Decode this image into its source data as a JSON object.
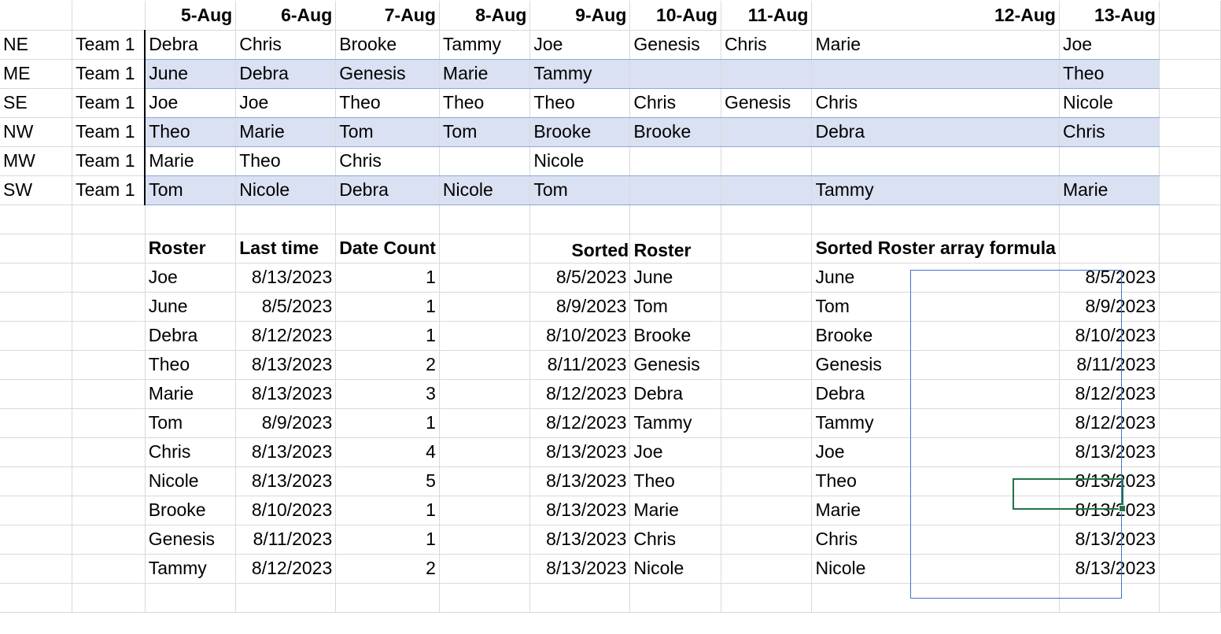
{
  "schedule": {
    "dates": [
      "5-Aug",
      "6-Aug",
      "7-Aug",
      "8-Aug",
      "9-Aug",
      "10-Aug",
      "11-Aug",
      "12-Aug",
      "13-Aug"
    ],
    "rows": [
      {
        "region": "NE",
        "team": "Team 1",
        "names": [
          "Debra",
          "Chris",
          "Brooke",
          "Tammy",
          "Joe",
          "Genesis",
          "Chris",
          "Marie",
          "Joe"
        ]
      },
      {
        "region": "ME",
        "team": "Team 1",
        "names": [
          "June",
          "Debra",
          "Genesis",
          "Marie",
          "Tammy",
          "",
          "",
          "",
          "Theo"
        ]
      },
      {
        "region": "SE",
        "team": "Team 1",
        "names": [
          "Joe",
          "Joe",
          "Theo",
          "Theo",
          "Theo",
          "Chris",
          "Genesis",
          "Chris",
          "Nicole"
        ]
      },
      {
        "region": "NW",
        "team": "Team 1",
        "names": [
          "Theo",
          "Marie",
          "Tom",
          "Tom",
          "Brooke",
          "Brooke",
          "",
          "Debra",
          "Chris"
        ]
      },
      {
        "region": "MW",
        "team": "Team 1",
        "names": [
          "Marie",
          "Theo",
          "Chris",
          "",
          "Nicole",
          "",
          "",
          "",
          ""
        ]
      },
      {
        "region": "SW",
        "team": "Team 1",
        "names": [
          "Tom",
          "Nicole",
          "Debra",
          "Nicole",
          "Tom",
          "",
          "",
          "Tammy",
          "Marie"
        ]
      }
    ],
    "band_color": "#d9e1f2"
  },
  "roster": {
    "headers": {
      "roster": "Roster",
      "last_time": "Last time",
      "date_count": "Date Count"
    },
    "rows": [
      [
        "Joe",
        "8/13/2023",
        "1"
      ],
      [
        "June",
        "8/5/2023",
        "1"
      ],
      [
        "Debra",
        "8/12/2023",
        "1"
      ],
      [
        "Theo",
        "8/13/2023",
        "2"
      ],
      [
        "Marie",
        "8/13/2023",
        "3"
      ],
      [
        "Tom",
        "8/9/2023",
        "1"
      ],
      [
        "Chris",
        "8/13/2023",
        "4"
      ],
      [
        "Nicole",
        "8/13/2023",
        "5"
      ],
      [
        "Brooke",
        "8/10/2023",
        "1"
      ],
      [
        "Genesis",
        "8/11/2023",
        "1"
      ],
      [
        "Tammy",
        "8/12/2023",
        "2"
      ]
    ]
  },
  "sorted_roster": {
    "header": "Sorted Roster",
    "rows": [
      [
        "8/5/2023",
        "June"
      ],
      [
        "8/9/2023",
        "Tom"
      ],
      [
        "8/10/2023",
        "Brooke"
      ],
      [
        "8/11/2023",
        "Genesis"
      ],
      [
        "8/12/2023",
        "Debra"
      ],
      [
        "8/12/2023",
        "Tammy"
      ],
      [
        "8/13/2023",
        "Joe"
      ],
      [
        "8/13/2023",
        "Theo"
      ],
      [
        "8/13/2023",
        "Marie"
      ],
      [
        "8/13/2023",
        "Chris"
      ],
      [
        "8/13/2023",
        "Nicole"
      ]
    ]
  },
  "sorted_array": {
    "header": "Sorted Roster array formula",
    "rows": [
      [
        "June",
        "8/5/2023"
      ],
      [
        "Tom",
        "8/9/2023"
      ],
      [
        "Brooke",
        "8/10/2023"
      ],
      [
        "Genesis",
        "8/11/2023"
      ],
      [
        "Debra",
        "8/12/2023"
      ],
      [
        "Tammy",
        "8/12/2023"
      ],
      [
        "Joe",
        "8/13/2023"
      ],
      [
        "Theo",
        "8/13/2023"
      ],
      [
        "Marie",
        "8/13/2023"
      ],
      [
        "Chris",
        "8/13/2023"
      ],
      [
        "Nicole",
        "8/13/2023"
      ]
    ],
    "selected_row": 7,
    "selection_color": "#217346"
  }
}
